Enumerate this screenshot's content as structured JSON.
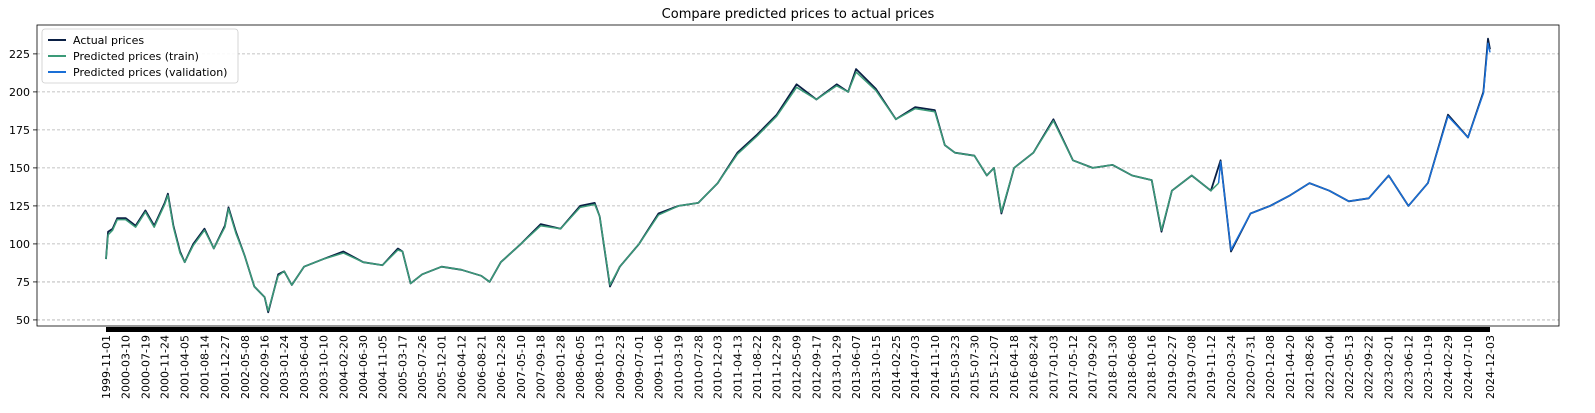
{
  "chart_data": {
    "type": "line",
    "title": "Compare predicted prices to actual prices",
    "xlabel": "",
    "ylabel": "",
    "ylim": [
      46,
      244
    ],
    "grid": {
      "y": true,
      "x": false,
      "style": "dashed"
    },
    "legend_position": "top-left",
    "x_tick_labels": [
      "1999-11-01",
      "2000-03-10",
      "2000-07-19",
      "2000-11-24",
      "2001-04-05",
      "2001-08-14",
      "2001-12-27",
      "2002-05-08",
      "2002-09-16",
      "2003-01-24",
      "2003-06-04",
      "2003-10-10",
      "2004-02-20",
      "2004-06-30",
      "2004-11-05",
      "2005-03-17",
      "2005-07-26",
      "2005-12-01",
      "2006-04-12",
      "2006-08-21",
      "2006-12-28",
      "2007-05-10",
      "2007-09-18",
      "2008-01-28",
      "2008-06-05",
      "2008-10-13",
      "2009-02-23",
      "2009-07-01",
      "2009-11-06",
      "2010-03-19",
      "2010-07-28",
      "2010-12-03",
      "2011-04-13",
      "2011-08-22",
      "2011-12-29",
      "2012-05-09",
      "2012-09-17",
      "2013-01-29",
      "2013-06-07",
      "2013-10-15",
      "2014-02-25",
      "2014-07-03",
      "2014-11-10",
      "2015-03-23",
      "2015-07-30",
      "2015-12-07",
      "2016-04-18",
      "2016-08-24",
      "2017-01-03",
      "2017-05-12",
      "2017-09-20",
      "2018-01-30",
      "2018-06-08",
      "2018-10-16",
      "2019-02-27",
      "2019-07-08",
      "2019-11-12",
      "2020-03-24",
      "2020-07-31",
      "2020-12-08",
      "2021-04-20",
      "2021-08-26",
      "2022-01-04",
      "2022-05-13",
      "2022-09-22",
      "2023-02-01",
      "2023-06-12",
      "2023-10-19",
      "2024-02-29",
      "2024-07-10",
      "2024-12-03"
    ],
    "y_ticks": [
      50,
      75,
      100,
      125,
      150,
      175,
      200,
      225
    ],
    "validation_start": "2020-01-02",
    "series": [
      {
        "name": "Actual prices",
        "color": "#0a1f44",
        "points": [
          [
            "1999-11-01",
            90
          ],
          [
            "1999-11-15",
            108
          ],
          [
            "1999-12-15",
            110
          ],
          [
            "2000-01-15",
            117
          ],
          [
            "2000-03-10",
            117
          ],
          [
            "2000-05-15",
            112
          ],
          [
            "2000-07-19",
            122
          ],
          [
            "2000-09-15",
            112
          ],
          [
            "2000-11-24",
            127
          ],
          [
            "2000-12-15",
            133
          ],
          [
            "2001-01-20",
            112
          ],
          [
            "2001-03-05",
            95
          ],
          [
            "2001-04-05",
            88
          ],
          [
            "2001-06-01",
            100
          ],
          [
            "2001-08-14",
            110
          ],
          [
            "2001-10-15",
            97
          ],
          [
            "2001-12-27",
            112
          ],
          [
            "2002-01-20",
            124
          ],
          [
            "2002-03-10",
            108
          ],
          [
            "2002-05-08",
            92
          ],
          [
            "2002-07-10",
            72
          ],
          [
            "2002-09-16",
            65
          ],
          [
            "2002-10-10",
            55
          ],
          [
            "2002-12-15",
            80
          ],
          [
            "2003-01-24",
            82
          ],
          [
            "2003-03-15",
            73
          ],
          [
            "2003-06-04",
            85
          ],
          [
            "2003-10-10",
            90
          ],
          [
            "2004-02-20",
            95
          ],
          [
            "2004-06-30",
            88
          ],
          [
            "2004-11-05",
            86
          ],
          [
            "2005-02-15",
            97
          ],
          [
            "2005-03-17",
            95
          ],
          [
            "2005-05-10",
            74
          ],
          [
            "2005-07-26",
            80
          ],
          [
            "2005-12-01",
            85
          ],
          [
            "2006-04-12",
            83
          ],
          [
            "2006-08-21",
            79
          ],
          [
            "2006-10-15",
            75
          ],
          [
            "2006-12-28",
            88
          ],
          [
            "2007-05-10",
            100
          ],
          [
            "2007-09-18",
            113
          ],
          [
            "2008-01-28",
            110
          ],
          [
            "2008-06-05",
            125
          ],
          [
            "2008-09-10",
            127
          ],
          [
            "2008-10-13",
            118
          ],
          [
            "2008-12-20",
            72
          ],
          [
            "2009-02-23",
            85
          ],
          [
            "2009-07-01",
            100
          ],
          [
            "2009-11-06",
            120
          ],
          [
            "2010-03-19",
            125
          ],
          [
            "2010-07-28",
            127
          ],
          [
            "2010-12-03",
            140
          ],
          [
            "2011-04-13",
            160
          ],
          [
            "2011-08-22",
            172
          ],
          [
            "2011-12-29",
            185
          ],
          [
            "2012-05-09",
            205
          ],
          [
            "2012-09-17",
            195
          ],
          [
            "2013-01-29",
            205
          ],
          [
            "2013-04-15",
            200
          ],
          [
            "2013-06-07",
            215
          ],
          [
            "2013-10-15",
            202
          ],
          [
            "2014-02-25",
            182
          ],
          [
            "2014-07-03",
            190
          ],
          [
            "2014-11-10",
            188
          ],
          [
            "2015-01-15",
            165
          ],
          [
            "2015-03-23",
            160
          ],
          [
            "2015-07-30",
            158
          ],
          [
            "2015-10-20",
            145
          ],
          [
            "2015-12-07",
            150
          ],
          [
            "2016-01-25",
            120
          ],
          [
            "2016-04-18",
            150
          ],
          [
            "2016-08-24",
            160
          ],
          [
            "2017-01-03",
            182
          ],
          [
            "2017-05-12",
            155
          ],
          [
            "2017-09-20",
            150
          ],
          [
            "2018-01-30",
            152
          ],
          [
            "2018-06-08",
            145
          ],
          [
            "2018-10-16",
            142
          ],
          [
            "2018-12-20",
            108
          ],
          [
            "2019-02-27",
            135
          ],
          [
            "2019-07-08",
            145
          ],
          [
            "2019-11-12",
            135
          ],
          [
            "2020-01-15",
            155
          ],
          [
            "2020-03-24",
            95
          ],
          [
            "2020-07-31",
            120
          ],
          [
            "2020-12-08",
            125
          ],
          [
            "2021-04-20",
            132
          ],
          [
            "2021-08-26",
            140
          ],
          [
            "2022-01-04",
            135
          ],
          [
            "2022-05-13",
            128
          ],
          [
            "2022-09-22",
            130
          ],
          [
            "2023-02-01",
            145
          ],
          [
            "2023-06-12",
            125
          ],
          [
            "2023-10-19",
            140
          ],
          [
            "2024-02-29",
            185
          ],
          [
            "2024-07-10",
            170
          ],
          [
            "2024-10-20",
            200
          ],
          [
            "2024-11-20",
            235
          ],
          [
            "2024-12-03",
            228
          ]
        ]
      },
      {
        "name": "Predicted prices (train)",
        "color": "#3b9a78",
        "points": [
          [
            "1999-11-01",
            90
          ],
          [
            "1999-11-15",
            106
          ],
          [
            "1999-12-15",
            109
          ],
          [
            "2000-01-15",
            116
          ],
          [
            "2000-03-10",
            116
          ],
          [
            "2000-05-15",
            111
          ],
          [
            "2000-07-19",
            121
          ],
          [
            "2000-09-15",
            111
          ],
          [
            "2000-11-24",
            126
          ],
          [
            "2000-12-15",
            132
          ],
          [
            "2001-01-20",
            111
          ],
          [
            "2001-03-05",
            94
          ],
          [
            "2001-04-05",
            88
          ],
          [
            "2001-06-01",
            99
          ],
          [
            "2001-08-14",
            109
          ],
          [
            "2001-10-15",
            97
          ],
          [
            "2001-12-27",
            111
          ],
          [
            "2002-01-20",
            123
          ],
          [
            "2002-03-10",
            107
          ],
          [
            "2002-05-08",
            92
          ],
          [
            "2002-07-10",
            72
          ],
          [
            "2002-09-16",
            65
          ],
          [
            "2002-10-10",
            56
          ],
          [
            "2002-12-15",
            79
          ],
          [
            "2003-01-24",
            82
          ],
          [
            "2003-03-15",
            73
          ],
          [
            "2003-06-04",
            85
          ],
          [
            "2003-10-10",
            90
          ],
          [
            "2004-02-20",
            94
          ],
          [
            "2004-06-30",
            88
          ],
          [
            "2004-11-05",
            86
          ],
          [
            "2005-02-15",
            96
          ],
          [
            "2005-03-17",
            95
          ],
          [
            "2005-05-10",
            74
          ],
          [
            "2005-07-26",
            80
          ],
          [
            "2005-12-01",
            85
          ],
          [
            "2006-04-12",
            83
          ],
          [
            "2006-08-21",
            79
          ],
          [
            "2006-10-15",
            75
          ],
          [
            "2006-12-28",
            88
          ],
          [
            "2007-05-10",
            100
          ],
          [
            "2007-09-18",
            112
          ],
          [
            "2008-01-28",
            110
          ],
          [
            "2008-06-05",
            124
          ],
          [
            "2008-09-10",
            126
          ],
          [
            "2008-10-13",
            118
          ],
          [
            "2008-12-20",
            73
          ],
          [
            "2009-02-23",
            85
          ],
          [
            "2009-07-01",
            100
          ],
          [
            "2009-11-06",
            119
          ],
          [
            "2010-03-19",
            125
          ],
          [
            "2010-07-28",
            127
          ],
          [
            "2010-12-03",
            140
          ],
          [
            "2011-04-13",
            159
          ],
          [
            "2011-08-22",
            171
          ],
          [
            "2011-12-29",
            184
          ],
          [
            "2012-05-09",
            203
          ],
          [
            "2012-09-17",
            195
          ],
          [
            "2013-01-29",
            204
          ],
          [
            "2013-04-15",
            200
          ],
          [
            "2013-06-07",
            213
          ],
          [
            "2013-10-15",
            201
          ],
          [
            "2014-02-25",
            182
          ],
          [
            "2014-07-03",
            189
          ],
          [
            "2014-11-10",
            187
          ],
          [
            "2015-01-15",
            165
          ],
          [
            "2015-03-23",
            160
          ],
          [
            "2015-07-30",
            158
          ],
          [
            "2015-10-20",
            145
          ],
          [
            "2015-12-07",
            150
          ],
          [
            "2016-01-25",
            121
          ],
          [
            "2016-04-18",
            150
          ],
          [
            "2016-08-24",
            160
          ],
          [
            "2017-01-03",
            181
          ],
          [
            "2017-05-12",
            155
          ],
          [
            "2017-09-20",
            150
          ],
          [
            "2018-01-30",
            152
          ],
          [
            "2018-06-08",
            145
          ],
          [
            "2018-10-16",
            142
          ],
          [
            "2018-12-20",
            109
          ],
          [
            "2019-02-27",
            135
          ],
          [
            "2019-07-08",
            145
          ],
          [
            "2019-11-12",
            135
          ],
          [
            "2020-01-02",
            140
          ]
        ]
      },
      {
        "name": "Predicted prices (validation)",
        "color": "#1a6fd6",
        "points": [
          [
            "2020-01-02",
            140
          ],
          [
            "2020-01-15",
            154
          ],
          [
            "2020-03-24",
            96
          ],
          [
            "2020-07-31",
            120
          ],
          [
            "2020-12-08",
            125
          ],
          [
            "2021-04-20",
            132
          ],
          [
            "2021-08-26",
            140
          ],
          [
            "2022-01-04",
            135
          ],
          [
            "2022-05-13",
            128
          ],
          [
            "2022-09-22",
            130
          ],
          [
            "2023-02-01",
            145
          ],
          [
            "2023-06-12",
            125
          ],
          [
            "2023-10-19",
            140
          ],
          [
            "2024-02-29",
            184
          ],
          [
            "2024-07-10",
            170
          ],
          [
            "2024-10-20",
            199
          ],
          [
            "2024-11-20",
            232
          ],
          [
            "2024-12-03",
            226
          ]
        ]
      }
    ]
  }
}
